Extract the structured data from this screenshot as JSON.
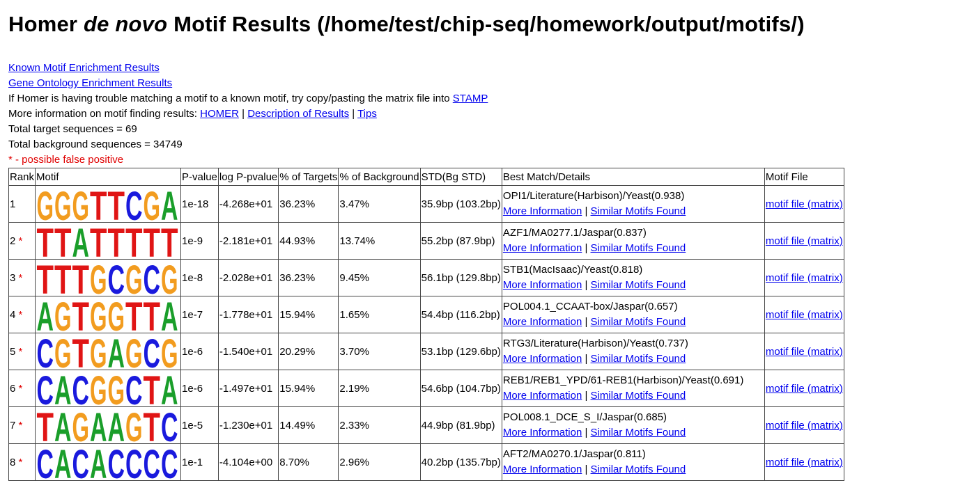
{
  "title": {
    "pre": "Homer ",
    "em": "de novo",
    "post": " Motif Results (/home/test/chip-seq/homework/output/motifs/)"
  },
  "links": {
    "known": "Known Motif Enrichment Results",
    "go": "Gene Ontology Enrichment Results"
  },
  "stamp_line": {
    "text": "If Homer is having trouble matching a motif to a known motif, try copy/pasting the matrix file into ",
    "link": "STAMP"
  },
  "info_line": {
    "text": "More information on motif finding results: ",
    "homer": "HOMER",
    "sep": " | ",
    "desc": "Description of Results",
    "tips": "Tips"
  },
  "totals": {
    "target": "Total target sequences = 69",
    "background": "Total background sequences = 34749"
  },
  "false_positive_note": "* - possible false positive",
  "headers": [
    "Rank",
    "Motif",
    "P-value",
    "log P-pvalue",
    "% of Targets",
    "% of Background",
    "STD(Bg STD)",
    "Best Match/Details",
    "Motif File"
  ],
  "more_info": "More Information",
  "similar": "Similar Motifs Found",
  "motif_file": "motif file (matrix)",
  "sep": " | ",
  "colors": {
    "A": "#1a9e2a",
    "C": "#1a1add",
    "G": "#f29c1f",
    "T": "#e01515",
    "link": "#0000ee",
    "star": "#e00000"
  },
  "rows": [
    {
      "rank": "1",
      "star": "",
      "pvalue": "1e-18",
      "logp": "-4.268e+01",
      "targets": "36.23%",
      "background": "3.47%",
      "std": "35.9bp (103.2bp)",
      "match": "OPI1/Literature(Harbison)/Yeast(0.938)",
      "logo": "GGGTTCGA"
    },
    {
      "rank": "2",
      "star": " *",
      "pvalue": "1e-9",
      "logp": "-2.181e+01",
      "targets": "44.93%",
      "background": "13.74%",
      "std": "55.2bp (87.9bp)",
      "match": "AZF1/MA0277.1/Jaspar(0.837)",
      "logo": "TTATTTTT"
    },
    {
      "rank": "3",
      "star": " *",
      "pvalue": "1e-8",
      "logp": "-2.028e+01",
      "targets": "36.23%",
      "background": "9.45%",
      "std": "56.1bp (129.8bp)",
      "match": "STB1(MacIsaac)/Yeast(0.818)",
      "logo": "TTTGCGCG"
    },
    {
      "rank": "4",
      "star": " *",
      "pvalue": "1e-7",
      "logp": "-1.778e+01",
      "targets": "15.94%",
      "background": "1.65%",
      "std": "54.4bp (116.2bp)",
      "match": "POL004.1_CCAAT-box/Jaspar(0.657)",
      "logo": "AGTGGTTA"
    },
    {
      "rank": "5",
      "star": " *",
      "pvalue": "1e-6",
      "logp": "-1.540e+01",
      "targets": "20.29%",
      "background": "3.70%",
      "std": "53.1bp (129.6bp)",
      "match": "RTG3/Literature(Harbison)/Yeast(0.737)",
      "logo": "CGTGAGCG"
    },
    {
      "rank": "6",
      "star": " *",
      "pvalue": "1e-6",
      "logp": "-1.497e+01",
      "targets": "15.94%",
      "background": "2.19%",
      "std": "54.6bp (104.7bp)",
      "match": "REB1/REB1_YPD/61-REB1(Harbison)/Yeast(0.691)",
      "logo": "CACGGCTA"
    },
    {
      "rank": "7",
      "star": " *",
      "pvalue": "1e-5",
      "logp": "-1.230e+01",
      "targets": "14.49%",
      "background": "2.33%",
      "std": "44.9bp (81.9bp)",
      "match": "POL008.1_DCE_S_I/Jaspar(0.685)",
      "logo": "TAGAAGTC"
    },
    {
      "rank": "8",
      "star": " *",
      "pvalue": "1e-1",
      "logp": "-4.104e+00",
      "targets": "8.70%",
      "background": "2.96%",
      "std": "40.2bp (135.7bp)",
      "match": "AFT2/MA0270.1/Jaspar(0.811)",
      "logo": "CACACCCC"
    }
  ]
}
